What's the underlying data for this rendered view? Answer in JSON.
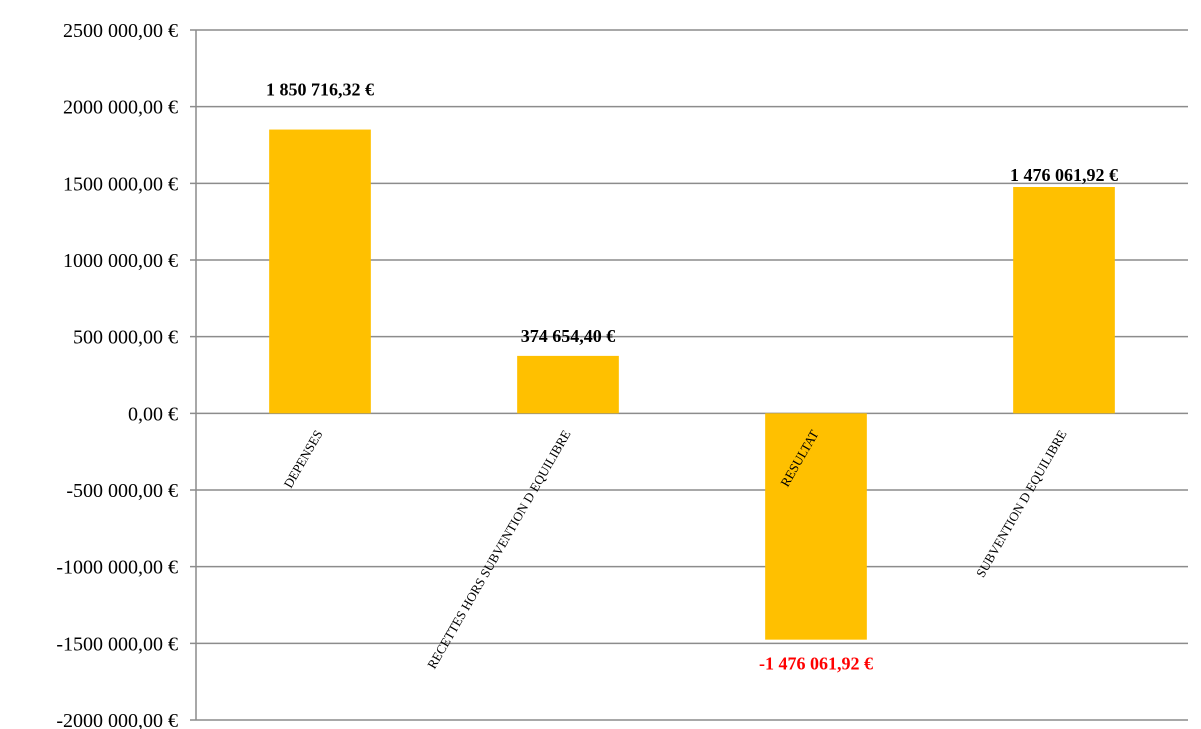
{
  "chart_data": {
    "type": "bar",
    "title": "",
    "xlabel": "",
    "ylabel": "",
    "categories": [
      "DEPENSES",
      "RECETTES HORS SUBVENTION D EQUILIBRE",
      "RESULTAT",
      "SUBVENTION D EQUILIBRE"
    ],
    "values": [
      1850716.32,
      374654.4,
      -1476061.92,
      1476061.92
    ],
    "data_labels": [
      "1 850 716,32 €",
      "374 654,40 €",
      "-1 476 061,92 €",
      "1 476 061,92 €"
    ],
    "ylim": [
      -2000000,
      2500000
    ],
    "yticks": [
      2500000,
      2000000,
      1500000,
      1000000,
      500000,
      0,
      -500000,
      -1000000,
      -1500000,
      -2000000
    ],
    "ytick_labels": [
      "2500 000,00 €",
      "2000 000,00 €",
      "1500 000,00 €",
      "1000 000,00 €",
      "500 000,00 €",
      "0,00 €",
      "-500 000,00 €",
      "-1000 000,00 €",
      "-1500 000,00 €",
      "-2000 000,00 €"
    ],
    "grid": true,
    "legend": "none",
    "colors": {
      "bar": "#FFC000",
      "positive_label": "#000000",
      "negative_label": "#FF0000",
      "grid": "#8C8C8C"
    }
  }
}
